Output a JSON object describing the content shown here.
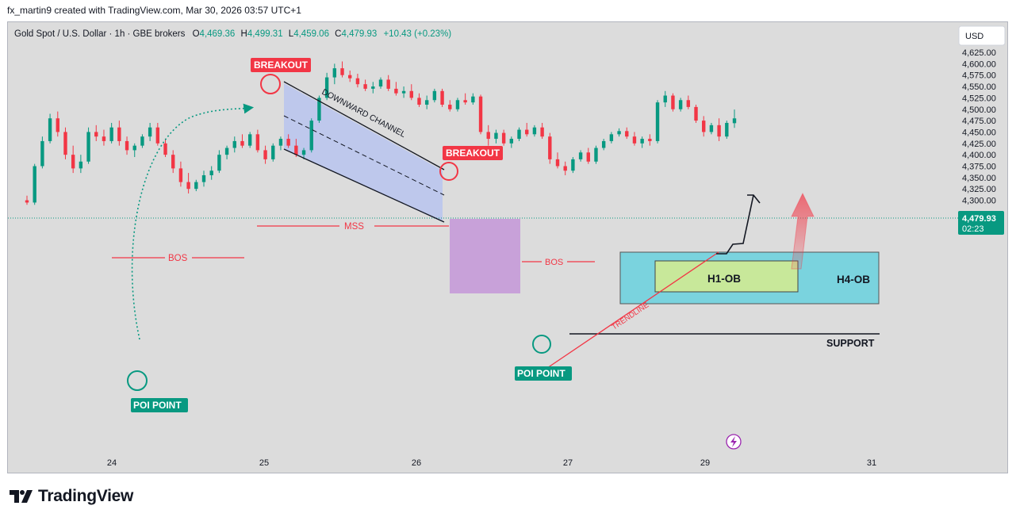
{
  "credit": "fx_martin9 created with TradingView.com, Mar 30, 2026 03:57 UTC+1",
  "brand": "TradingView",
  "header": {
    "symbol": "Gold Spot / U.S. Dollar · 1h · GBE brokers",
    "o_label": "O",
    "o": "4,469.36",
    "h_label": "H",
    "h": "4,499.31",
    "l_label": "L",
    "l": "4,459.06",
    "c_label": "C",
    "c": "4,479.93",
    "change": "+10.43 (+0.23%)"
  },
  "currency": "USD",
  "price_tag": {
    "price": "4,479.93",
    "timer": "02:23"
  },
  "colors": {
    "up": "#089981",
    "down": "#f23645",
    "background": "#dcdcdc",
    "label_red": "#f23645",
    "label_green": "#089981",
    "channel_fill": "#b8c4ee",
    "mss_zone": "#c28ed8",
    "h4_ob": "#7ad3de",
    "h1_ob": "#c8e89a"
  },
  "annotations": {
    "breakout_1": "BREAKOUT",
    "breakout_2": "BREAKOUT",
    "channel": "DOWNWARD CHANNEL",
    "mss": "MSS",
    "bos_1": "BOS",
    "bos_2": "BOS",
    "poi_1": "POI POINT",
    "poi_2": "POI POINT",
    "trendline": "TRENDLINE",
    "h1_ob": "H1-OB",
    "h4_ob": "H4-OB",
    "support": "SUPPORT"
  },
  "chart_data": {
    "type": "candlestick",
    "title": "Gold Spot / U.S. Dollar · 1h · GBE brokers",
    "ylim": [
      4280,
      4640
    ],
    "y_ticks": [
      "4,625.00",
      "4,600.00",
      "4,575.00",
      "4,550.00",
      "4,525.00",
      "4,500.00",
      "4,475.00",
      "4,450.00",
      "4,425.00",
      "4,400.00",
      "4,375.00",
      "4,350.00",
      "4,325.00",
      "4,300.00"
    ],
    "x_ticks": [
      "24",
      "25",
      "26",
      "27",
      "29",
      "31"
    ],
    "last_price": 4479.93,
    "ohlc": [
      [
        4300,
        4310,
        4290,
        4295
      ],
      [
        4295,
        4380,
        4290,
        4375
      ],
      [
        4375,
        4440,
        4370,
        4430
      ],
      [
        4430,
        4490,
        4425,
        4480
      ],
      [
        4480,
        4495,
        4440,
        4450
      ],
      [
        4450,
        4460,
        4390,
        4400
      ],
      [
        4400,
        4420,
        4360,
        4370
      ],
      [
        4370,
        4400,
        4360,
        4385
      ],
      [
        4385,
        4460,
        4380,
        4450
      ],
      [
        4450,
        4465,
        4430,
        4440
      ],
      [
        4440,
        4455,
        4420,
        4430
      ],
      [
        4430,
        4470,
        4425,
        4460
      ],
      [
        4460,
        4475,
        4420,
        4430
      ],
      [
        4430,
        4440,
        4400,
        4410
      ],
      [
        4410,
        4425,
        4395,
        4420
      ],
      [
        4420,
        4445,
        4415,
        4440
      ],
      [
        4440,
        4470,
        4430,
        4460
      ],
      [
        4460,
        4470,
        4420,
        4425
      ],
      [
        4425,
        4435,
        4395,
        4400
      ],
      [
        4400,
        4410,
        4360,
        4370
      ],
      [
        4370,
        4385,
        4330,
        4340
      ],
      [
        4340,
        4360,
        4315,
        4325
      ],
      [
        4325,
        4345,
        4320,
        4340
      ],
      [
        4340,
        4365,
        4330,
        4355
      ],
      [
        4355,
        4375,
        4345,
        4365
      ],
      [
        4365,
        4410,
        4360,
        4400
      ],
      [
        4400,
        4420,
        4390,
        4415
      ],
      [
        4415,
        4440,
        4405,
        4430
      ],
      [
        4430,
        4445,
        4415,
        4420
      ],
      [
        4420,
        4450,
        4415,
        4445
      ],
      [
        4445,
        4455,
        4405,
        4410
      ],
      [
        4410,
        4420,
        4380,
        4390
      ],
      [
        4390,
        4425,
        4385,
        4420
      ],
      [
        4420,
        4440,
        4410,
        4435
      ],
      [
        4435,
        4445,
        4415,
        4420
      ],
      [
        4420,
        4435,
        4395,
        4400
      ],
      [
        4400,
        4415,
        4390,
        4410
      ],
      [
        4410,
        4480,
        4405,
        4475
      ],
      [
        4475,
        4530,
        4470,
        4525
      ],
      [
        4525,
        4580,
        4520,
        4570
      ],
      [
        4570,
        4600,
        4555,
        4590
      ],
      [
        4590,
        4605,
        4570,
        4575
      ],
      [
        4575,
        4585,
        4560,
        4568
      ],
      [
        4568,
        4578,
        4548,
        4555
      ],
      [
        4555,
        4565,
        4540,
        4545
      ],
      [
        4545,
        4560,
        4535,
        4550
      ],
      [
        4550,
        4570,
        4545,
        4565
      ],
      [
        4565,
        4575,
        4540,
        4545
      ],
      [
        4545,
        4560,
        4530,
        4535
      ],
      [
        4535,
        4550,
        4525,
        4540
      ],
      [
        4540,
        4555,
        4520,
        4525
      ],
      [
        4525,
        4535,
        4505,
        4510
      ],
      [
        4510,
        4530,
        4500,
        4520
      ],
      [
        4520,
        4545,
        4515,
        4540
      ],
      [
        4540,
        4545,
        4505,
        4510
      ],
      [
        4510,
        4520,
        4495,
        4500
      ],
      [
        4500,
        4525,
        4495,
        4520
      ],
      [
        4520,
        4535,
        4510,
        4515
      ],
      [
        4515,
        4535,
        4510,
        4528
      ],
      [
        4528,
        4532,
        4445,
        4450
      ],
      [
        4450,
        4465,
        4420,
        4435
      ],
      [
        4435,
        4455,
        4425,
        4448
      ],
      [
        4448,
        4455,
        4420,
        4425
      ],
      [
        4425,
        4440,
        4415,
        4435
      ],
      [
        4435,
        4460,
        4430,
        4455
      ],
      [
        4455,
        4470,
        4440,
        4445
      ],
      [
        4445,
        4465,
        4440,
        4460
      ],
      [
        4460,
        4470,
        4435,
        4440
      ],
      [
        4440,
        4448,
        4380,
        4390
      ],
      [
        4390,
        4405,
        4370,
        4375
      ],
      [
        4375,
        4385,
        4355,
        4365
      ],
      [
        4365,
        4395,
        4360,
        4390
      ],
      [
        4390,
        4410,
        4385,
        4405
      ],
      [
        4405,
        4415,
        4380,
        4385
      ],
      [
        4385,
        4420,
        4380,
        4415
      ],
      [
        4415,
        4435,
        4410,
        4430
      ],
      [
        4430,
        4450,
        4425,
        4445
      ],
      [
        4445,
        4458,
        4440,
        4452
      ],
      [
        4452,
        4460,
        4435,
        4440
      ],
      [
        4440,
        4450,
        4420,
        4425
      ],
      [
        4425,
        4440,
        4415,
        4435
      ],
      [
        4435,
        4445,
        4420,
        4430
      ],
      [
        4430,
        4520,
        4425,
        4515
      ],
      [
        4515,
        4540,
        4505,
        4530
      ],
      [
        4530,
        4535,
        4495,
        4500
      ],
      [
        4500,
        4525,
        4495,
        4520
      ],
      [
        4520,
        4530,
        4500,
        4505
      ],
      [
        4505,
        4510,
        4470,
        4475
      ],
      [
        4475,
        4485,
        4440,
        4450
      ],
      [
        4450,
        4470,
        4445,
        4465
      ],
      [
        4465,
        4480,
        4430,
        4440
      ],
      [
        4440,
        4475,
        4435,
        4470
      ],
      [
        4469.36,
        4499.31,
        4459.06,
        4479.93
      ]
    ]
  }
}
